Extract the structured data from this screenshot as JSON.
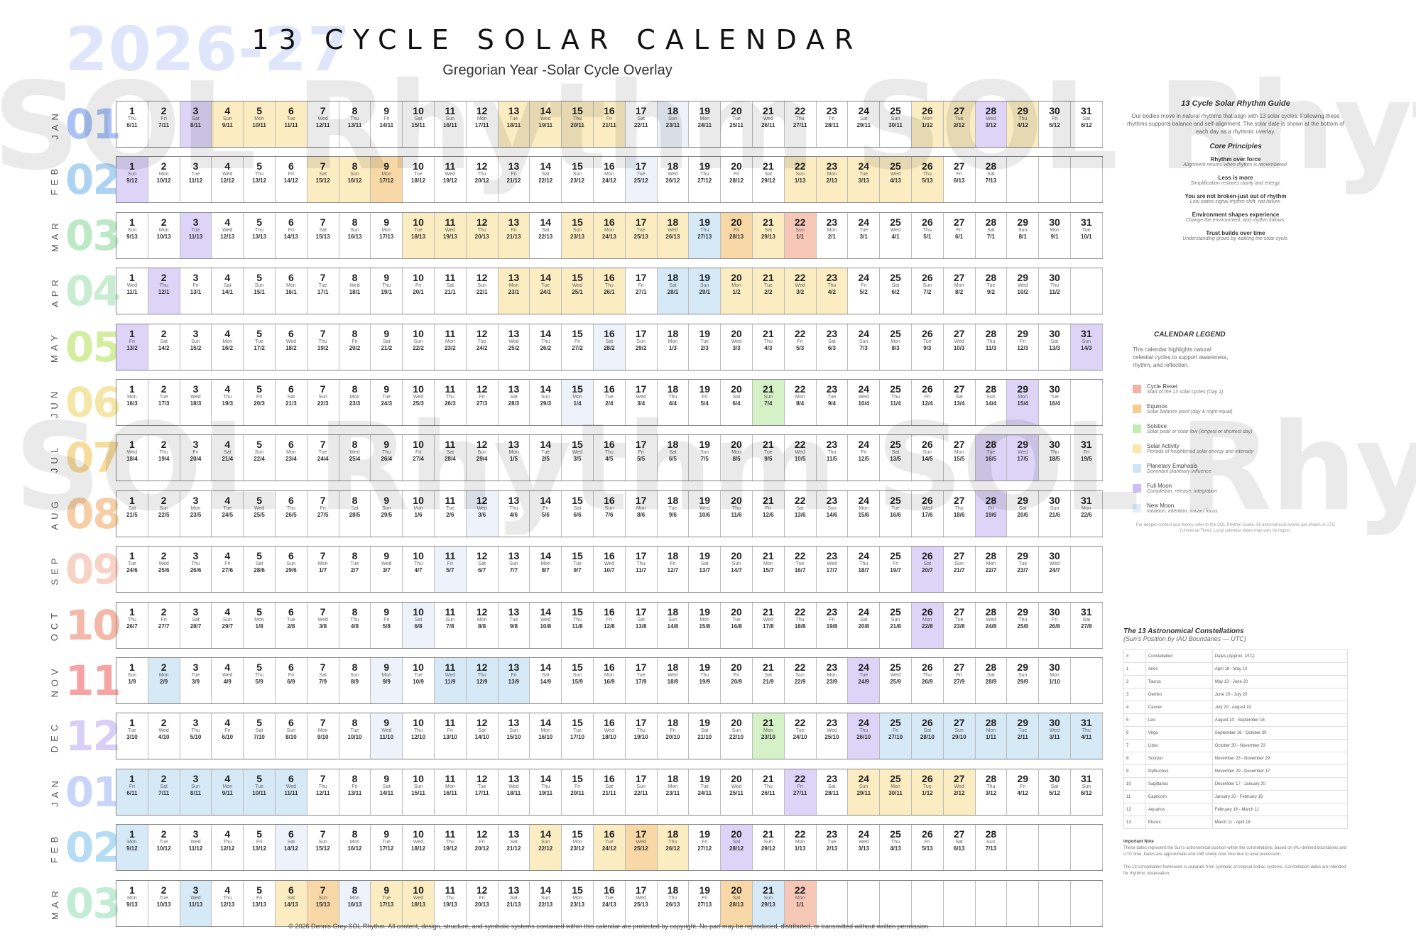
{
  "year_label": "2026-27",
  "title": "13 CYCLE SOLAR CALENDAR",
  "subtitle": "Gregorian Year -Solar Cycle Overlay",
  "watermark": "SOL Rhythm SOL Rhythm",
  "footer": "© 2026 Dennis Grey SOL Rhythm. All content, design, structure, and symbolic systems contained within this calendar are protected by copyright. No part may be reproduced, distributed, or transmitted without written permission.",
  "weekdays": [
    "Sun",
    "Mon",
    "Tue",
    "Wed",
    "Thu",
    "Fri",
    "Sat"
  ],
  "colors": {
    "solar": "#fbecc1",
    "full": "#ddd4f7",
    "new": "#edf2fb",
    "planet": "#d6e9f7",
    "equinox": "#f7d8a6",
    "reset": "#f7c8b8",
    "solstice": "#d4f1c8"
  },
  "months": [
    {
      "name": "JAN",
      "num": "01",
      "days": 31,
      "start": 4,
      "g_day": 6,
      "g_mon": 11,
      "g_len": 30,
      "color": "#aac2f5",
      "marks": {
        "3": "full",
        "4": "solar",
        "5": "solar",
        "6": "solar",
        "13": "solar",
        "14": "solar",
        "15": "solar",
        "16": "solar",
        "18": "new",
        "26": "solar",
        "27": "solar",
        "28": "full",
        "29": "solar"
      }
    },
    {
      "name": "FEB",
      "num": "02",
      "days": 28,
      "start": 0,
      "g_day": 9,
      "g_mon": 12,
      "g_len": 29,
      "color": "#aed3f2",
      "marks": {
        "1": "full",
        "7": "solar",
        "8": "solar",
        "9": "equinox",
        "17": "new",
        "22": "solar",
        "23": "solar",
        "24": "solar",
        "25": "solar",
        "26": "solar"
      }
    },
    {
      "name": "MAR",
      "num": "03",
      "days": 31,
      "start": 0,
      "g_day": 9,
      "g_mon": 13,
      "g_len": 29,
      "color": "#bde8c6",
      "marks": {
        "3": "full",
        "10": "solar",
        "11": "solar",
        "12": "solar",
        "13": "solar",
        "15": "solar",
        "16": "solar",
        "17": "solar",
        "18": "solar",
        "19": "planet",
        "20": "equinox",
        "21": "solar",
        "22": "reset"
      }
    },
    {
      "name": "APR",
      "num": "04",
      "days": 30,
      "start": 3,
      "g_day": 11,
      "g_mon": 1,
      "g_len": 29,
      "color": "#c8ecd2",
      "marks": {
        "2": "full",
        "13": "solar",
        "14": "solar",
        "15": "solar",
        "16": "solar",
        "18": "planet",
        "19": "planet",
        "20": "solar",
        "21": "solar",
        "22": "solar",
        "23": "solar"
      }
    },
    {
      "name": "MAY",
      "num": "05",
      "days": 31,
      "start": 5,
      "g_day": 13,
      "g_mon": 2,
      "g_len": 29,
      "color": "#d2ee9e",
      "marks": {
        "1": "full",
        "16": "new",
        "31": "full"
      }
    },
    {
      "name": "JUN",
      "num": "06",
      "days": 30,
      "start": 1,
      "g_day": 16,
      "g_mon": 3,
      "g_len": 29,
      "color": "#f4e6a6",
      "marks": {
        "15": "new",
        "21": "solstice",
        "29": "full"
      }
    },
    {
      "name": "JUL",
      "num": "07",
      "days": 31,
      "start": 3,
      "g_day": 18,
      "g_mon": 4,
      "g_len": 29,
      "color": "#f6dc9c",
      "marks": {
        "28": "full",
        "29": "full"
      }
    },
    {
      "name": "AUG",
      "num": "08",
      "days": 31,
      "start": 6,
      "g_day": 21,
      "g_mon": 5,
      "g_len": 29,
      "color": "#f6cda4",
      "marks": {
        "12": "new",
        "28": "full"
      }
    },
    {
      "name": "SEP",
      "num": "09",
      "days": 30,
      "start": 2,
      "g_day": 24,
      "g_mon": 6,
      "g_len": 29,
      "color": "#f7d2c6",
      "marks": {
        "11": "new",
        "26": "full"
      }
    },
    {
      "name": "OCT",
      "num": "10",
      "days": 31,
      "start": 4,
      "g_day": 26,
      "g_mon": 7,
      "g_len": 29,
      "color": "#f3b8a8",
      "marks": {
        "10": "new",
        "26": "full"
      }
    },
    {
      "name": "NOV",
      "num": "11",
      "days": 30,
      "start": 0,
      "g_day": 1,
      "g_mon": 9,
      "g_len": 29,
      "color": "#f5a3a3",
      "marks": {
        "2": "planet",
        "9": "new",
        "11": "planet",
        "12": "planet",
        "13": "planet",
        "24": "full"
      }
    },
    {
      "name": "DEC",
      "num": "12",
      "days": 31,
      "start": 2,
      "g_day": 3,
      "g_mon": 10,
      "g_len": 29,
      "color": "#d8cff6",
      "marks": {
        "9": "new",
        "21": "solstice",
        "24": "full",
        "25": "planet",
        "26": "planet",
        "27": "planet",
        "28": "planet",
        "29": "planet",
        "30": "planet",
        "31": "planet"
      }
    },
    {
      "name": "JAN",
      "num": "01",
      "days": 31,
      "start": 5,
      "g_day": 6,
      "g_mon": 11,
      "g_len": 30,
      "color": "#c8d5f8",
      "marks": {
        "1": "planet",
        "2": "planet",
        "3": "planet",
        "4": "planet",
        "5": "planet",
        "6": "planet",
        "22": "full",
        "24": "solar",
        "25": "solar",
        "26": "solar",
        "27": "solar"
      }
    },
    {
      "name": "FEB",
      "num": "02",
      "days": 28,
      "start": 1,
      "g_day": 9,
      "g_mon": 12,
      "g_len": 29,
      "color": "#b4dcf2",
      "marks": {
        "1": "planet",
        "6": "new",
        "14": "solar",
        "16": "solar",
        "17": "equinox",
        "18": "solar",
        "20": "full"
      }
    },
    {
      "name": "MAR",
      "num": "03",
      "days": 22,
      "start": 1,
      "g_day": 9,
      "g_mon": 13,
      "g_len": 29,
      "color": "#c2ecd4",
      "marks": {
        "3": "planet",
        "6": "solar",
        "7": "equinox",
        "8": "new",
        "9": "solar",
        "10": "solar",
        "20": "equinox",
        "21": "planet",
        "22": "reset"
      }
    }
  ],
  "guide": {
    "title": "13 Cycle Solar Rhythm Guide",
    "intro": "Our bodies move in natural rhythms that align with 13 solar cycles. Following these rhythms supports balance and self-alignment. The solar date is shown at the bottom of each day as a rhythmic overlay.",
    "principles_title": "Core Principles",
    "principles": [
      {
        "name": "Rhythm over force",
        "desc": "Alignment returns when rhythm is remembered."
      },
      {
        "name": "Less is more",
        "desc": "Simplification restores clarity and energy."
      },
      {
        "name": "You are not broken-just out of rhythm",
        "desc": "Low states signal rhythm shift, not failure."
      },
      {
        "name": "Environment shapes experience",
        "desc": "Change the environment, and rhythm follows."
      },
      {
        "name": "Trust builds over time",
        "desc": "Understanding grows by walking the solar cycle."
      }
    ]
  },
  "legend": {
    "title": "CALENDAR LEGEND",
    "intro": "This calendar highlights natural celestial cycles to support awareness, rhythm, and reflection.",
    "items": [
      {
        "name": "Cycle Reset",
        "desc": "Start of the 13 solar cycles (Day 1)",
        "color": "#f4b2a4"
      },
      {
        "name": "Equinox",
        "desc": "Solar balance point (day & night equal)",
        "color": "#f5cc8c"
      },
      {
        "name": "Solstice",
        "desc": "Solar peak or solar low (longest or shortest day)",
        "color": "#c2ecb4"
      },
      {
        "name": "Solar Activity",
        "desc": "Periods of heightened solar energy and intensity",
        "color": "#fbe6b0"
      },
      {
        "name": "Planetary Emphasis",
        "desc": "Dominant planetary influence",
        "color": "#cfe5f6"
      },
      {
        "name": "Full Moon",
        "desc": "Completion, release, integration",
        "color": "#cdbff4"
      },
      {
        "name": "New Moon",
        "desc": "Initiation, intention, inward focus",
        "color": "#e4ecfa"
      }
    ],
    "note": "For deeper context and theory, refer to the SOL Rhythm Guide. All astronomical events are shown in UTC (Universal Time). Local calendar dates may vary by region."
  },
  "constellations": {
    "title": "The 13 Astronomical Constellations",
    "subtitle": "(Sun's Position by IAU Boundaries — UTC)",
    "header": [
      "#",
      "Constellation",
      "Dates (Approx. UTC)"
    ],
    "rows": [
      [
        "1",
        "Aries",
        "April 18 - May 13"
      ],
      [
        "2",
        "Taurus",
        "May 13 - June 20"
      ],
      [
        "3",
        "Gemini",
        "June 20 - July 20"
      ],
      [
        "4",
        "Cancer",
        "July 20 - August 10"
      ],
      [
        "5",
        "Leo",
        "August 10 - September 16"
      ],
      [
        "6",
        "Virgo",
        "September 16 - October 30"
      ],
      [
        "7",
        "Libra",
        "October 30 - November 23"
      ],
      [
        "8",
        "Scorpio",
        "November 23 - November 29"
      ],
      [
        "9",
        "Ophiuchus",
        "November 29 - December 17"
      ],
      [
        "10",
        "Sagittarius",
        "December 17 - January 20"
      ],
      [
        "11",
        "Capricorn",
        "January 20 - February 16"
      ],
      [
        "12",
        "Aquarius",
        "February 16 - March 11"
      ],
      [
        "13",
        "Pisces",
        "March 11 - April 18"
      ]
    ],
    "note_title": "Important Note",
    "note1": "These dates represent the Sun's astronomical position within the constellations, based on IAU-defined boundaries and UTC time. Dates are approximate and shift slowly over time due to axial precession.",
    "note2": "The 13 constellation framework is separate from symbolic or tropical zodiac systems. Constellation dates are intended for rhythmic observation."
  }
}
